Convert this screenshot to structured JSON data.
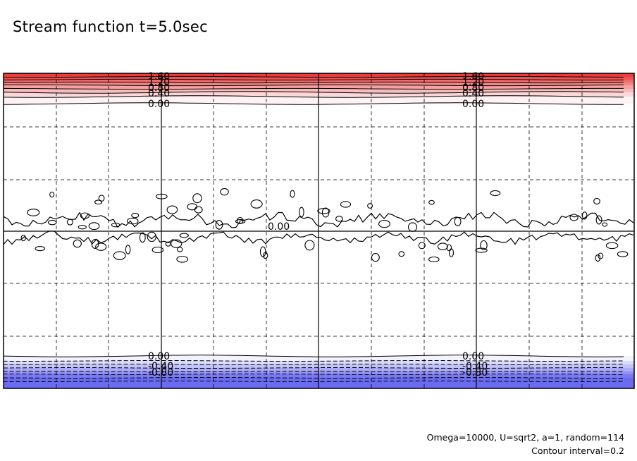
{
  "title": "Stream function t=5.0sec",
  "notes": {
    "params": "Omega=10000, U=sqrt2, a=1, random=114",
    "interval": "Contour interval=0.2"
  },
  "colors": {
    "positive": "#ee3c3c",
    "negative": "#6b6bf2",
    "line": "#000000",
    "grid": "#000000"
  },
  "chart_data": {
    "type": "heatmap",
    "title": "Stream function t=5.0sec",
    "contour_interval": 0.2,
    "grid": "dashed",
    "top_band": {
      "levels": [
        1.6,
        1.4,
        1.2,
        1.0,
        0.8,
        0.6,
        0.4,
        0.2,
        0.0
      ],
      "labels": [
        "1.60",
        "1.20",
        "0.80",
        "0.40",
        "0.00"
      ]
    },
    "bottom_band": {
      "levels": [
        0.0,
        -0.2,
        -0.4,
        -0.6,
        -0.8,
        -1.0,
        -1.2,
        -1.4
      ],
      "labels": [
        "0.00",
        "-0.40",
        "-0.80"
      ]
    },
    "middle_label": "0.00"
  }
}
